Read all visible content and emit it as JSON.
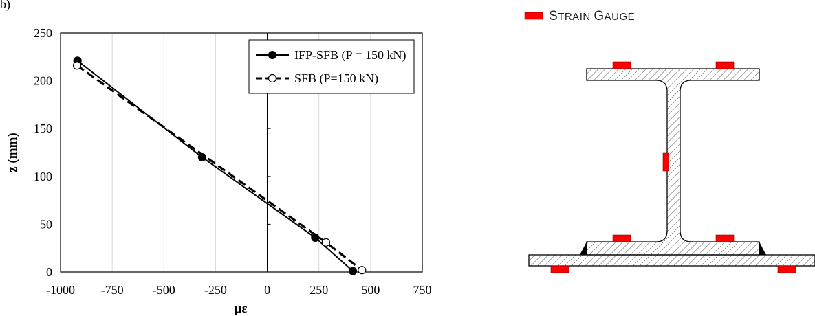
{
  "panel_label": "b)",
  "chart_data": {
    "type": "line",
    "xlabel": "με",
    "ylabel": "z (mm)",
    "xlim": [
      -1000,
      750
    ],
    "ylim": [
      0,
      250
    ],
    "xticks": [
      "-1000",
      "-750",
      "-500",
      "-250",
      "0",
      "250",
      "500",
      "750"
    ],
    "yticks": [
      "0",
      "50",
      "100",
      "150",
      "200",
      "250"
    ],
    "xtick_values": [
      -1000,
      -750,
      -500,
      -250,
      0,
      250,
      500,
      750
    ],
    "ytick_values": [
      0,
      50,
      100,
      150,
      200,
      250
    ],
    "grid": "vertical",
    "legend_position": "top-right",
    "series": [
      {
        "name": "IFP-SFB (P = 150 kN)",
        "style": "solid",
        "marker": "filled-circle",
        "x": [
          -918,
          -315,
          232,
          414
        ],
        "y": [
          221,
          120,
          36,
          1
        ]
      },
      {
        "name": "SFB (P=150 kN)",
        "style": "dashed",
        "marker": "open-circle",
        "x": [
          -920,
          284,
          458
        ],
        "y": [
          216,
          31,
          2
        ]
      }
    ]
  },
  "diagram": {
    "legend_label": "Strain Gauge",
    "gauge_color": "#ff0000"
  }
}
